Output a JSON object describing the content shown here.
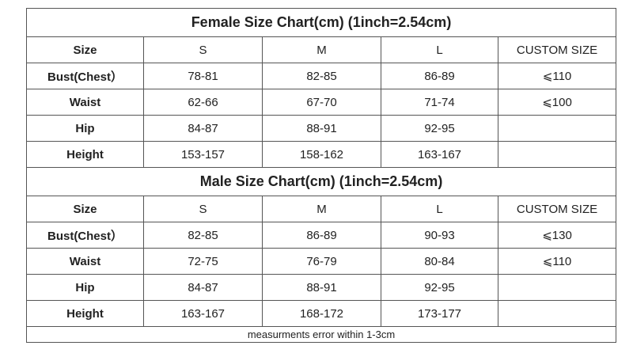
{
  "sections": [
    {
      "title": "Female Size Chart(cm) (1inch=2.54cm)",
      "header": [
        "Size",
        "S",
        "M",
        "L",
        "CUSTOM SIZE"
      ],
      "rows": [
        [
          "Bust(Chest）",
          "78-81",
          "82-85",
          "86-89",
          "⩽110"
        ],
        [
          "Waist",
          "62-66",
          "67-70",
          "71-74",
          "⩽100"
        ],
        [
          "Hip",
          "84-87",
          "88-91",
          "92-95"
        ],
        [
          "Height",
          "153-157",
          "158-162",
          "163-167"
        ]
      ]
    },
    {
      "title": "Male Size Chart(cm) (1inch=2.54cm)",
      "header": [
        "Size",
        "S",
        "M",
        "L",
        "CUSTOM SIZE"
      ],
      "rows": [
        [
          "Bust(Chest）",
          "82-85",
          "86-89",
          "90-93",
          "⩽130"
        ],
        [
          "Waist",
          "72-75",
          "76-79",
          "80-84",
          "⩽110"
        ],
        [
          "Hip",
          "84-87",
          "88-91",
          "92-95"
        ],
        [
          "Height",
          "163-167",
          "168-172",
          "173-177"
        ]
      ]
    }
  ],
  "footnote": "measurments error within 1-3cm"
}
